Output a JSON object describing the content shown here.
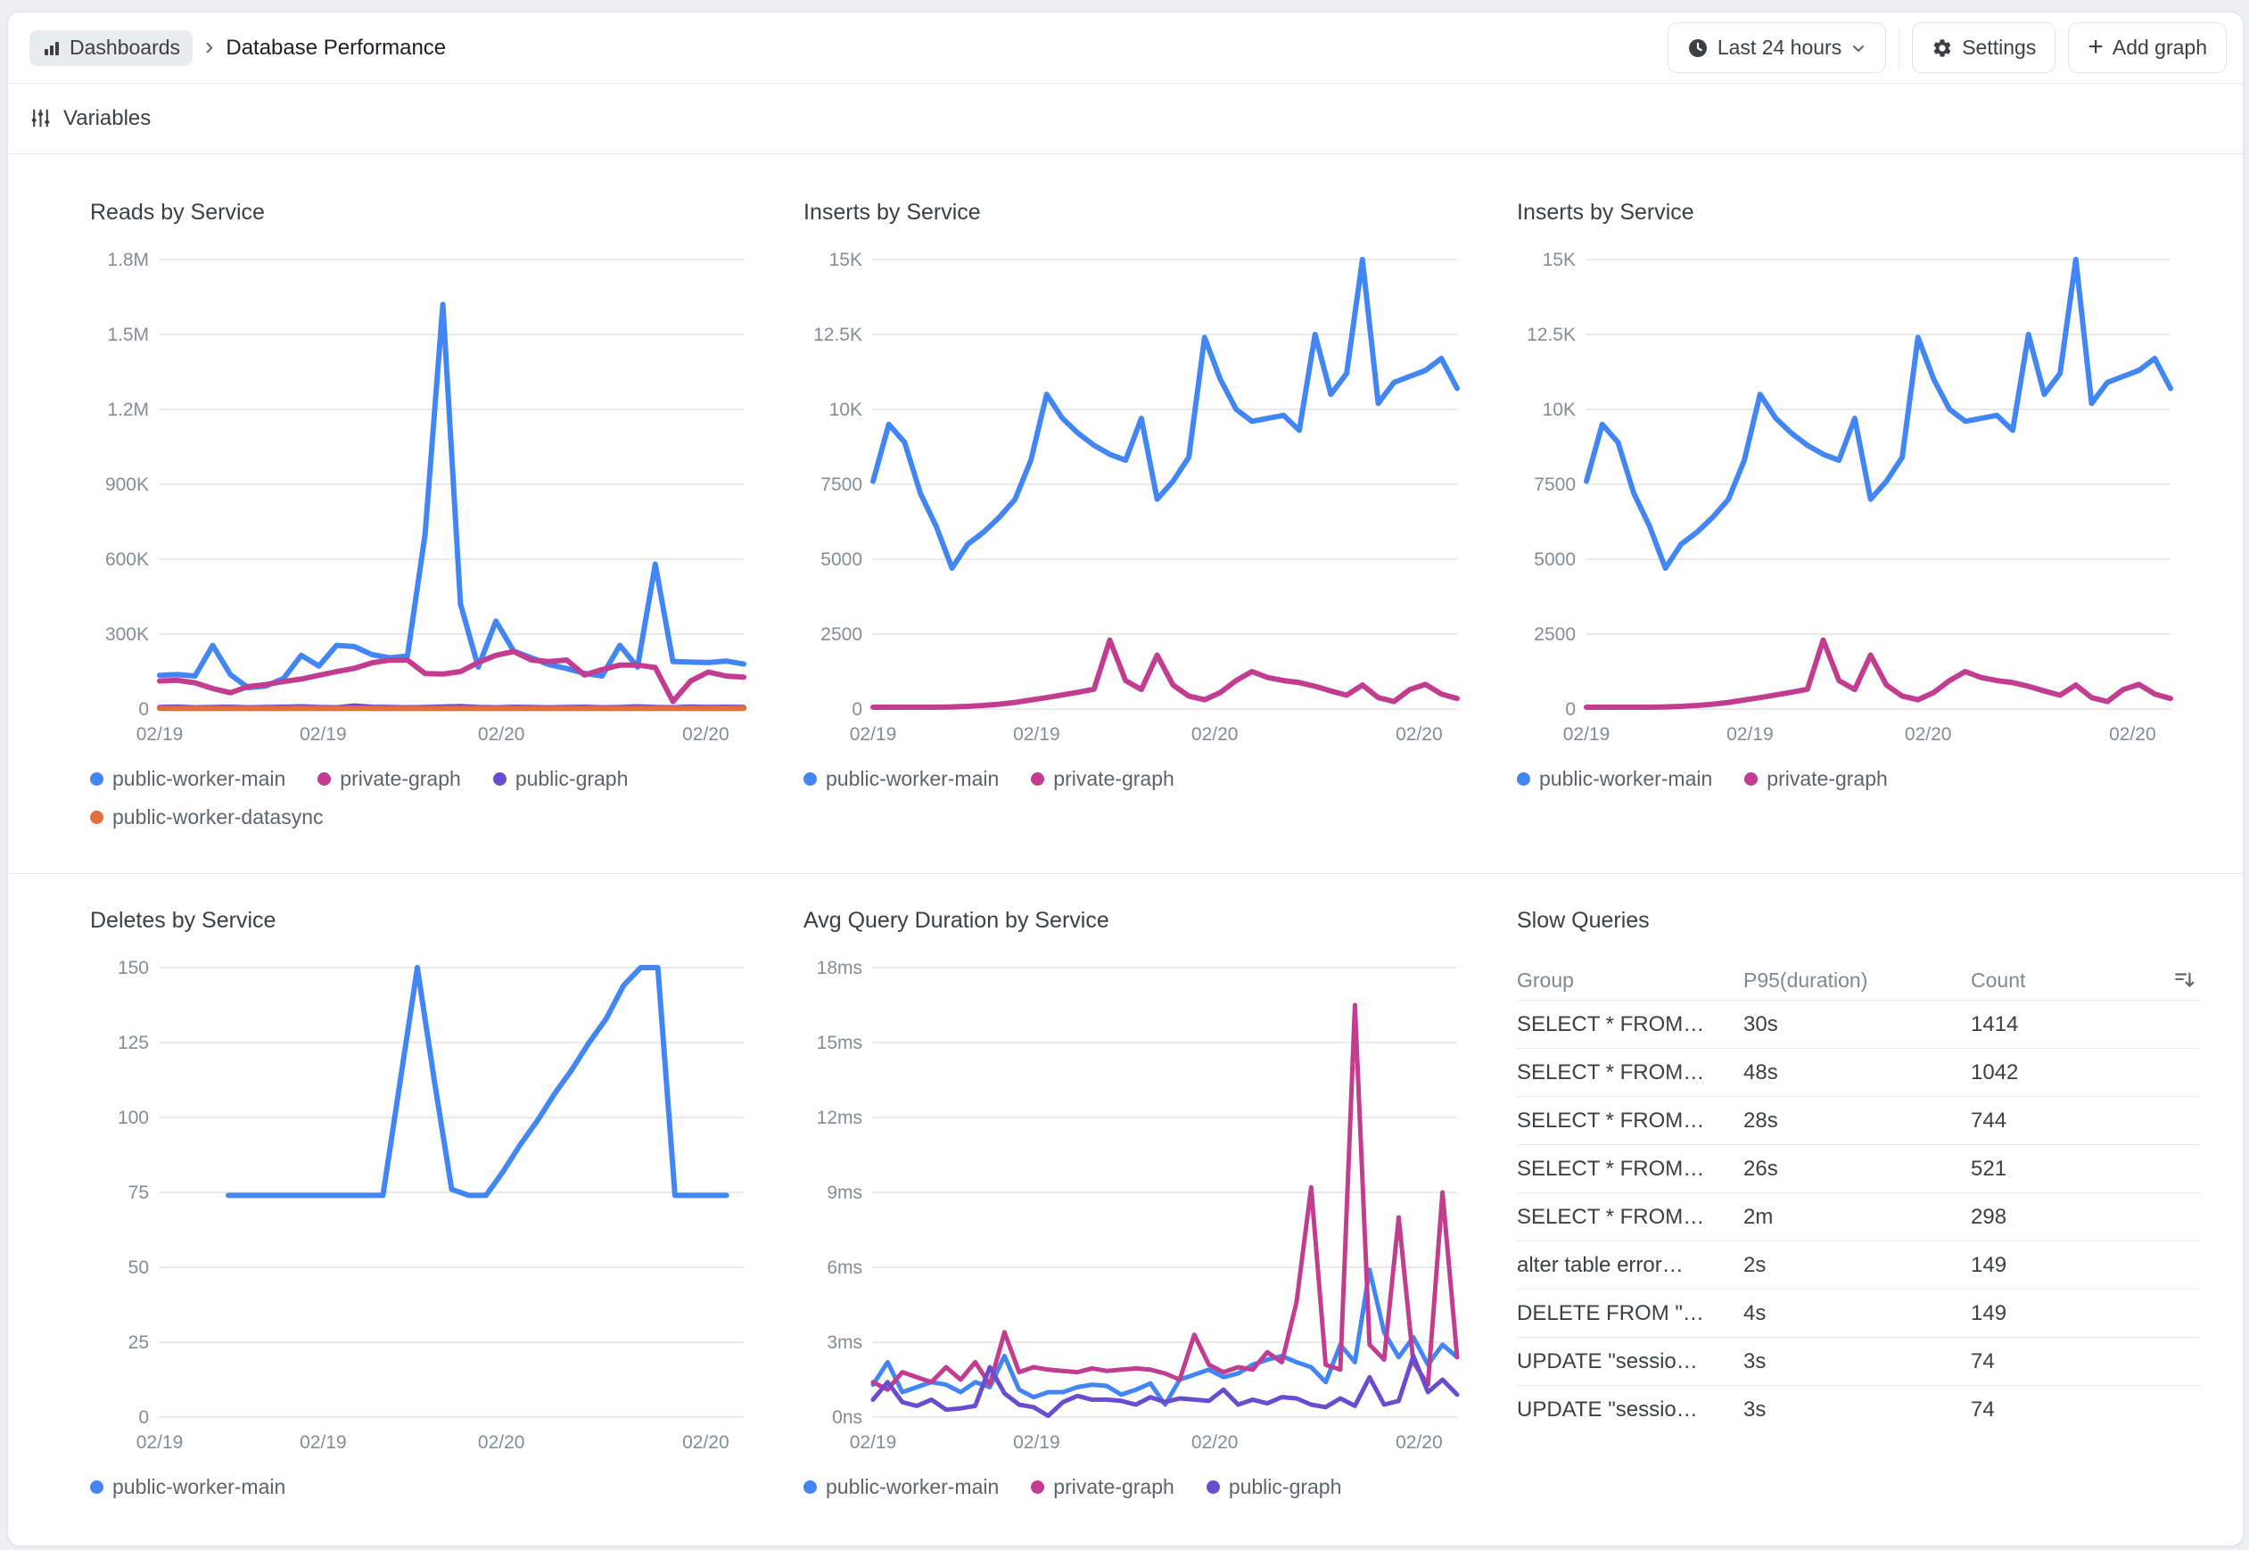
{
  "page": {
    "background": "#edeff2"
  },
  "colors": {
    "blue": "#4285f4",
    "magenta": "#c23d90",
    "purple": "#6a4ccf",
    "orange": "#e06f3a"
  },
  "header": {
    "breadcrumb_root": "Dashboards",
    "breadcrumb_separator": "›",
    "title": "Database Performance",
    "time_range_label": "Last 24 hours",
    "settings_label": "Settings",
    "add_graph_plus": "+",
    "add_graph_label": "Add graph"
  },
  "variables": {
    "label": "Variables"
  },
  "panels": [
    {
      "type": "line",
      "title": "Reads by Service",
      "y_max": 1800000,
      "stroke": 6,
      "y_ticks": [
        "1.8M",
        "1.5M",
        "1.2M",
        "900K",
        "600K",
        "300K",
        "0"
      ],
      "x_labels": [
        "02/19",
        "02/19",
        "02/20",
        "02/20"
      ],
      "series": [
        {
          "name": "public-worker-main",
          "color": "blue",
          "values": [
            135000,
            138000,
            132000,
            255000,
            138000,
            85000,
            92000,
            122000,
            215000,
            172000,
            255000,
            250000,
            218000,
            205000,
            212000,
            700000,
            1620000,
            420000,
            168000,
            352000,
            232000,
            205000,
            178000,
            162000,
            143000,
            132000,
            255000,
            168000,
            580000,
            190000,
            188000,
            186000,
            192000,
            180000
          ]
        },
        {
          "name": "private-graph",
          "color": "magenta",
          "values": [
            112000,
            115000,
            105000,
            82000,
            65000,
            90000,
            98000,
            110000,
            120000,
            135000,
            150000,
            163000,
            185000,
            196000,
            196000,
            142000,
            140000,
            150000,
            186000,
            215000,
            230000,
            196000,
            190000,
            196000,
            136000,
            158000,
            176000,
            176000,
            166000,
            30000,
            112000,
            148000,
            132000,
            128000
          ]
        },
        {
          "name": "public-graph",
          "color": "purple",
          "values": [
            6000,
            8000,
            5000,
            6000,
            7000,
            5000,
            6000,
            7000,
            9000,
            6000,
            5000,
            12000,
            7000,
            6000,
            5000,
            6000,
            8000,
            10000,
            6000,
            5000,
            7000,
            6000,
            5000,
            6000,
            7000,
            5000,
            6000,
            9000,
            6000,
            5000,
            8000,
            6000,
            7000,
            6000
          ]
        },
        {
          "name": "public-worker-datasync",
          "color": "orange",
          "values": [
            2500,
            2500,
            2500,
            2500,
            2500,
            2500,
            2500,
            2500,
            2500,
            2500,
            2500,
            2500,
            2500,
            2500,
            2500,
            2500,
            2500,
            2500,
            2500,
            2500,
            2500,
            2500,
            2500,
            2500,
            2500,
            2500,
            2500,
            2500,
            2500,
            2500,
            2500,
            2500,
            2500,
            2500
          ]
        }
      ],
      "legend": [
        {
          "label": "public-worker-main",
          "color": "blue"
        },
        {
          "label": "private-graph",
          "color": "magenta"
        },
        {
          "label": "public-graph",
          "color": "purple"
        },
        {
          "label": "public-worker-datasync",
          "color": "orange"
        }
      ]
    },
    {
      "type": "line",
      "title": "Inserts by Service",
      "y_max": 15000,
      "stroke": 6,
      "y_ticks": [
        "15K",
        "12.5K",
        "10K",
        "7500",
        "5000",
        "2500",
        "0"
      ],
      "x_labels": [
        "02/19",
        "02/19",
        "02/20",
        "02/20"
      ],
      "series": [
        {
          "name": "public-worker-main",
          "color": "blue",
          "values": [
            7600,
            9500,
            8900,
            7200,
            6100,
            4700,
            5500,
            5900,
            6400,
            7000,
            8300,
            10500,
            9700,
            9200,
            8800,
            8500,
            8300,
            9700,
            7000,
            7600,
            8400,
            12400,
            11000,
            10000,
            9600,
            9700,
            9800,
            9300,
            12500,
            10500,
            11200,
            15000,
            10200,
            10900,
            11100,
            11300,
            11700,
            10700
          ]
        },
        {
          "name": "private-graph",
          "color": "magenta",
          "values": [
            60,
            60,
            60,
            60,
            60,
            70,
            90,
            120,
            160,
            220,
            300,
            380,
            470,
            560,
            660,
            2300,
            950,
            650,
            1800,
            800,
            430,
            310,
            550,
            950,
            1250,
            1050,
            950,
            880,
            760,
            600,
            460,
            800,
            380,
            250,
            650,
            820,
            500,
            350
          ]
        }
      ],
      "legend": [
        {
          "label": "public-worker-main",
          "color": "blue"
        },
        {
          "label": "private-graph",
          "color": "magenta"
        }
      ]
    },
    {
      "type": "line",
      "title": "Inserts by Service",
      "y_max": 15000,
      "stroke": 6,
      "y_ticks": [
        "15K",
        "12.5K",
        "10K",
        "7500",
        "5000",
        "2500",
        "0"
      ],
      "x_labels": [
        "02/19",
        "02/19",
        "02/20",
        "02/20"
      ],
      "series": [
        {
          "name": "public-worker-main",
          "color": "blue",
          "values": [
            7600,
            9500,
            8900,
            7200,
            6100,
            4700,
            5500,
            5900,
            6400,
            7000,
            8300,
            10500,
            9700,
            9200,
            8800,
            8500,
            8300,
            9700,
            7000,
            7600,
            8400,
            12400,
            11000,
            10000,
            9600,
            9700,
            9800,
            9300,
            12500,
            10500,
            11200,
            15000,
            10200,
            10900,
            11100,
            11300,
            11700,
            10700
          ]
        },
        {
          "name": "private-graph",
          "color": "magenta",
          "values": [
            60,
            60,
            60,
            60,
            60,
            70,
            90,
            120,
            160,
            220,
            300,
            380,
            470,
            560,
            660,
            2300,
            950,
            650,
            1800,
            800,
            430,
            310,
            550,
            950,
            1250,
            1050,
            950,
            880,
            760,
            600,
            460,
            800,
            380,
            250,
            650,
            820,
            500,
            350
          ]
        }
      ],
      "legend": [
        {
          "label": "public-worker-main",
          "color": "blue"
        },
        {
          "label": "private-graph",
          "color": "magenta"
        }
      ]
    },
    {
      "type": "line",
      "title": "Deletes by Service",
      "y_max": 150,
      "stroke": 6,
      "y_ticks": [
        "150",
        "125",
        "100",
        "75",
        "50",
        "25",
        "0"
      ],
      "x_labels": [
        "02/19",
        "02/19",
        "02/20",
        "02/20"
      ],
      "series": [
        {
          "name": "public-worker-main",
          "color": "blue",
          "values": [
            null,
            null,
            null,
            null,
            74,
            74,
            74,
            74,
            74,
            74,
            74,
            74,
            74,
            74,
            112,
            150,
            112,
            76,
            74,
            74,
            82,
            91,
            99,
            108,
            116,
            125,
            133,
            144,
            150,
            150,
            74,
            74,
            74,
            74,
            null
          ]
        }
      ],
      "legend": [
        {
          "label": "public-worker-main",
          "color": "blue"
        }
      ]
    },
    {
      "type": "line",
      "title": "Avg Query Duration by Service",
      "y_max": 18,
      "stroke": 5,
      "y_ticks": [
        "18ms",
        "15ms",
        "12ms",
        "9ms",
        "6ms",
        "3ms",
        "0ns"
      ],
      "x_labels": [
        "02/19",
        "02/19",
        "02/20",
        "02/20"
      ],
      "series": [
        {
          "name": "public-worker-main",
          "color": "blue",
          "values": [
            1.3,
            2.2,
            1.0,
            1.2,
            1.4,
            1.3,
            1.0,
            1.4,
            1.2,
            2.45,
            1.1,
            0.8,
            1.0,
            1.0,
            1.2,
            1.3,
            1.25,
            0.9,
            1.1,
            1.35,
            0.5,
            1.5,
            1.7,
            1.9,
            1.6,
            1.75,
            2.1,
            2.3,
            2.45,
            2.2,
            2.0,
            1.4,
            2.9,
            2.2,
            5.9,
            3.4,
            2.4,
            3.2,
            2.1,
            2.9,
            2.4
          ]
        },
        {
          "name": "private-graph",
          "color": "magenta",
          "values": [
            1.4,
            1.1,
            1.8,
            1.6,
            1.4,
            2.0,
            1.5,
            2.2,
            1.3,
            3.4,
            1.8,
            2.0,
            1.9,
            1.85,
            1.8,
            1.95,
            1.85,
            1.9,
            1.95,
            1.9,
            1.75,
            1.5,
            3.3,
            2.1,
            1.8,
            2.0,
            1.9,
            2.6,
            2.2,
            4.6,
            9.2,
            2.1,
            1.9,
            16.5,
            2.9,
            2.3,
            8.0,
            2.2,
            1.3,
            9.0,
            2.4
          ]
        },
        {
          "name": "public-graph",
          "color": "purple",
          "values": [
            0.7,
            1.4,
            0.6,
            0.45,
            0.7,
            0.3,
            0.35,
            0.45,
            2.0,
            0.95,
            0.5,
            0.4,
            0.05,
            0.6,
            0.85,
            0.7,
            0.7,
            0.65,
            0.5,
            0.8,
            0.6,
            0.75,
            0.7,
            0.65,
            1.1,
            0.5,
            0.7,
            0.55,
            0.8,
            0.75,
            0.5,
            0.4,
            0.75,
            0.45,
            1.6,
            0.5,
            0.65,
            2.45,
            1.0,
            1.5,
            0.9
          ]
        }
      ],
      "legend": [
        {
          "label": "public-worker-main",
          "color": "blue"
        },
        {
          "label": "private-graph",
          "color": "magenta"
        },
        {
          "label": "public-graph",
          "color": "purple"
        }
      ]
    },
    {
      "type": "table",
      "title": "Slow Queries",
      "columns": [
        "Group",
        "P95(duration)",
        "Count"
      ],
      "sort_icon": "sort-descending",
      "rows": [
        [
          "SELECT * FROM…",
          "30s",
          "1414"
        ],
        [
          "SELECT * FROM…",
          "48s",
          "1042"
        ],
        [
          "SELECT * FROM…",
          "28s",
          "744"
        ],
        [
          "SELECT * FROM…",
          "26s",
          "521"
        ],
        [
          "SELECT * FROM…",
          "2m",
          "298"
        ],
        [
          "alter table error…",
          "2s",
          "149"
        ],
        [
          "DELETE FROM \"…",
          "4s",
          "149"
        ],
        [
          "UPDATE \"sessio…",
          "3s",
          "74"
        ],
        [
          "UPDATE \"sessio…",
          "3s",
          "74"
        ]
      ]
    }
  ]
}
